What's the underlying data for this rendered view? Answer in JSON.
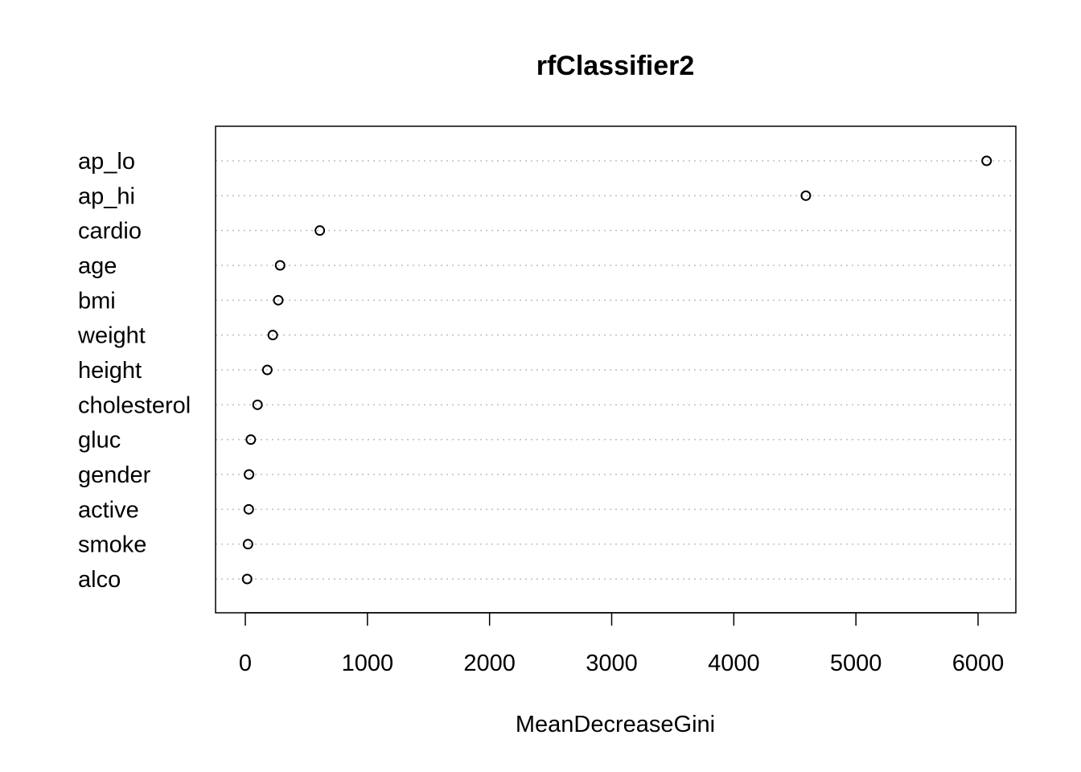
{
  "chart_data": {
    "type": "scatter",
    "subtype": "dotchart",
    "title": "rfClassifier2",
    "xlabel": "MeanDecreaseGini",
    "ylabel": "",
    "xlim": [
      -240,
      6300
    ],
    "x_ticks": [
      0,
      1000,
      2000,
      3000,
      4000,
      5000,
      6000
    ],
    "x_tick_labels": [
      "0",
      "1000",
      "2000",
      "3000",
      "4000",
      "5000",
      "6000"
    ],
    "grid": "dotted horizontal lines per category",
    "legend": "none",
    "categories": [
      "ap_lo",
      "ap_hi",
      "cardio",
      "age",
      "bmi",
      "weight",
      "height",
      "cholesterol",
      "gluc",
      "gender",
      "active",
      "smoke",
      "alco"
    ],
    "values": [
      6070,
      4590,
      610,
      285,
      270,
      225,
      180,
      100,
      45,
      30,
      28,
      22,
      15
    ],
    "colors": {
      "point_stroke": "#000000",
      "grid": "#bebebe",
      "frame": "#000000",
      "background": "#ffffff"
    }
  }
}
